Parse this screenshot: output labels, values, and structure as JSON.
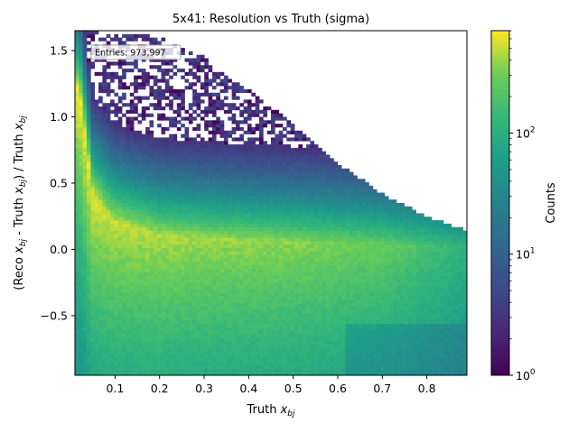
{
  "chart_data": {
    "type": "heatmap",
    "title": "5x41: Resolution vs Truth (sigma)",
    "xlabel": "Truth x_bj",
    "ylabel": "(Reco x_bj - Truth x_bj) / Truth x_bj",
    "colorbar_label": "Counts",
    "colorbar_scale": "log",
    "colorbar_range": [
      1,
      700
    ],
    "colorbar_ticks": [
      {
        "value": 1,
        "base": "10",
        "exp": "0"
      },
      {
        "value": 10,
        "base": "10",
        "exp": "1"
      },
      {
        "value": 100,
        "base": "10",
        "exp": "2"
      }
    ],
    "colormap": "viridis",
    "empty_bin_color": "#ffffff",
    "xlim": [
      0.01,
      0.89
    ],
    "ylim": [
      -0.95,
      1.65
    ],
    "xticks": [
      "0.1",
      "0.2",
      "0.3",
      "0.4",
      "0.5",
      "0.6",
      "0.7",
      "0.8"
    ],
    "yticks": [
      "−0.5",
      "0.0",
      "0.5",
      "1.0",
      "1.5"
    ],
    "annotation": "Entries: 973,997",
    "bins": {
      "nx": 100,
      "ny": 100
    },
    "profile": [
      {
        "x": 0.02,
        "ridge_y": 1.2,
        "upper_edge_y": 1.65,
        "peak_count": 700
      },
      {
        "x": 0.05,
        "ridge_y": 0.4,
        "upper_edge_y": 1.65,
        "peak_count": 600
      },
      {
        "x": 0.1,
        "ridge_y": 0.2,
        "upper_edge_y": 1.65,
        "peak_count": 500
      },
      {
        "x": 0.2,
        "ridge_y": 0.1,
        "upper_edge_y": 1.6,
        "peak_count": 450
      },
      {
        "x": 0.3,
        "ridge_y": 0.08,
        "upper_edge_y": 1.45,
        "peak_count": 400
      },
      {
        "x": 0.4,
        "ridge_y": 0.06,
        "upper_edge_y": 1.2,
        "peak_count": 380
      },
      {
        "x": 0.5,
        "ridge_y": 0.05,
        "upper_edge_y": 0.95,
        "peak_count": 350
      },
      {
        "x": 0.6,
        "ridge_y": 0.04,
        "upper_edge_y": 0.65,
        "peak_count": 300
      },
      {
        "x": 0.7,
        "ridge_y": 0.03,
        "upper_edge_y": 0.42,
        "peak_count": 250
      },
      {
        "x": 0.8,
        "ridge_y": 0.02,
        "upper_edge_y": 0.25,
        "peak_count": 150
      },
      {
        "x": 0.89,
        "ridge_y": 0.01,
        "upper_edge_y": 0.14,
        "peak_count": 80
      }
    ]
  }
}
